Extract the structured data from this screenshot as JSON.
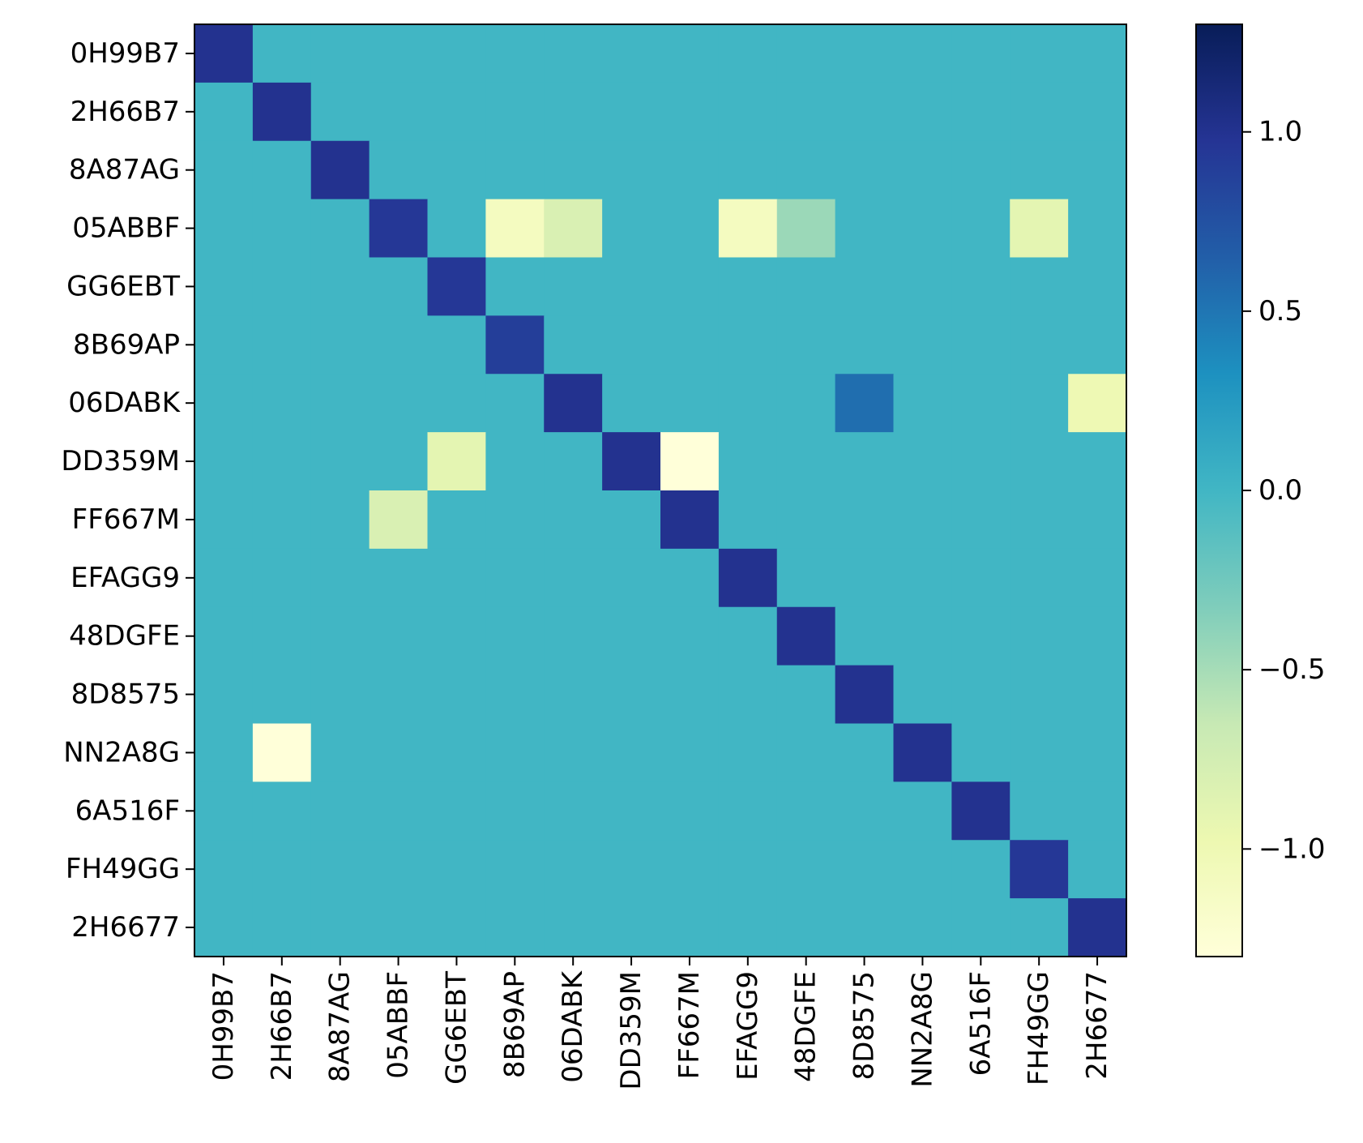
{
  "chart_data": {
    "type": "heatmap",
    "title": "",
    "xlabel": "",
    "ylabel": "",
    "rows": [
      "0H99B7",
      "2H66B7",
      "8A87AG",
      "05ABBF",
      "GG6EBT",
      "8B69AP",
      "06DABK",
      "DD359M",
      "FF667M",
      "EFAGG9",
      "48DGFE",
      "8D8575",
      "NN2A8G",
      "6A516F",
      "FH49GG",
      "2H6677"
    ],
    "columns": [
      "0H99B7",
      "2H66B7",
      "8A87AG",
      "05ABBF",
      "GG6EBT",
      "8B69AP",
      "06DABK",
      "DD359M",
      "FF667M",
      "EFAGG9",
      "48DGFE",
      "8D8575",
      "NN2A8G",
      "6A516F",
      "FH49GG",
      "2H6677"
    ],
    "values": [
      [
        1.0,
        0,
        0,
        0,
        0,
        0,
        0,
        0,
        0,
        0,
        0,
        0,
        0,
        0,
        0,
        0
      ],
      [
        0,
        1.0,
        0,
        0,
        0,
        0,
        0,
        0,
        0,
        0,
        0,
        0,
        0,
        0,
        0,
        0
      ],
      [
        0,
        0,
        1.0,
        0,
        0,
        0,
        0,
        0,
        0,
        0,
        0,
        0,
        0,
        0,
        0,
        0
      ],
      [
        0,
        0,
        0,
        0.95,
        0,
        -1.1,
        -0.8,
        0,
        0,
        -1.1,
        -0.45,
        0,
        0,
        0,
        -0.9,
        0
      ],
      [
        0,
        0,
        0,
        0,
        0.95,
        0,
        0,
        0,
        0,
        0,
        0,
        0,
        0,
        0,
        0,
        0
      ],
      [
        0,
        0,
        0,
        0,
        0,
        0.9,
        0,
        0,
        0,
        0,
        0,
        0,
        0,
        0,
        0,
        0
      ],
      [
        0,
        0,
        0,
        0,
        0,
        0,
        1.0,
        0,
        0,
        0,
        0,
        0.55,
        0,
        0,
        0,
        -1.0
      ],
      [
        0,
        0,
        0,
        0,
        -0.9,
        0,
        0,
        1.0,
        -1.3,
        0,
        0,
        0,
        0,
        0,
        0,
        0
      ],
      [
        0,
        0,
        0,
        -0.8,
        0,
        0,
        0,
        0,
        1.0,
        0,
        0,
        0,
        0,
        0,
        0,
        0
      ],
      [
        0,
        0,
        0,
        0,
        0,
        0,
        0,
        0,
        0,
        1.0,
        0,
        0,
        0,
        0,
        0,
        0
      ],
      [
        0,
        0,
        0,
        0,
        0,
        0,
        0,
        0,
        0,
        0,
        1.0,
        0,
        0,
        0,
        0,
        0
      ],
      [
        0,
        0,
        0,
        0,
        0,
        0,
        0,
        0,
        0,
        0,
        0,
        1.0,
        0,
        0,
        0,
        0
      ],
      [
        0,
        -1.3,
        0,
        0,
        0,
        0,
        0,
        0,
        0,
        0,
        0,
        0,
        1.0,
        0,
        0,
        0
      ],
      [
        0,
        0,
        0,
        0,
        0,
        0,
        0,
        0,
        0,
        0,
        0,
        0,
        0,
        1.0,
        0,
        0
      ],
      [
        0,
        0,
        0,
        0,
        0,
        0,
        0,
        0,
        0,
        0,
        0,
        0,
        0,
        0,
        0.95,
        0
      ],
      [
        0,
        0,
        0,
        0,
        0,
        0,
        0,
        0,
        0,
        0,
        0,
        0,
        0,
        0,
        0,
        1.0
      ]
    ],
    "colorbar": {
      "vmin": -1.3,
      "vmax": 1.3,
      "colormap": "YlGnBu",
      "ticks": [
        1.0,
        0.5,
        0.0,
        -0.5,
        -1.0
      ],
      "tick_labels": [
        "1.0",
        "0.5",
        "0.0",
        "−0.5",
        "−1.0"
      ]
    },
    "grid": false
  }
}
